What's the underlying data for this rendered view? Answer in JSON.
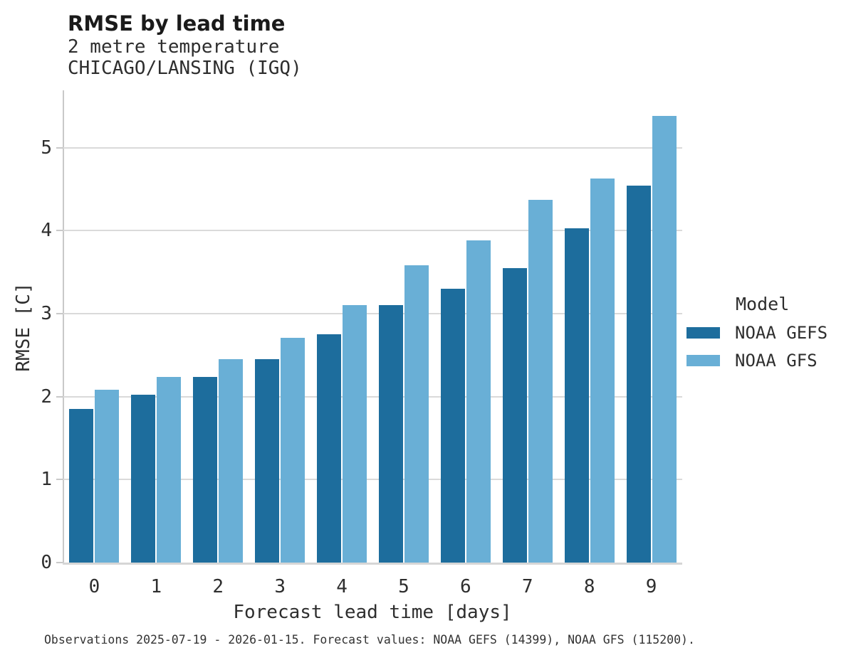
{
  "chart_data": {
    "type": "bar",
    "title": "RMSE by lead time",
    "subtitle": [
      "2 metre temperature",
      "CHICAGO/LANSING (IGQ)"
    ],
    "categories": [
      "0",
      "1",
      "2",
      "3",
      "4",
      "5",
      "6",
      "7",
      "8",
      "9"
    ],
    "series": [
      {
        "name": "NOAA GEFS",
        "color": "#1d6d9d",
        "values": [
          1.85,
          2.02,
          2.24,
          2.45,
          2.75,
          3.1,
          3.3,
          3.55,
          4.03,
          4.54
        ]
      },
      {
        "name": "NOAA GFS",
        "color": "#69afd6",
        "values": [
          2.08,
          2.24,
          2.45,
          2.71,
          3.1,
          3.58,
          3.88,
          4.37,
          4.63,
          5.38
        ]
      }
    ],
    "xlabel": "Forecast lead time [days]",
    "ylabel": "RMSE [C]",
    "ylim": [
      0,
      5.69
    ],
    "yticks": [
      0,
      1,
      2,
      3,
      4,
      5
    ],
    "grid": true,
    "legend_title": "Model",
    "legend_position": "right"
  },
  "footer": {
    "note": "Observations 2025-07-19 - 2026-01-15. Forecast values: NOAA GEFS (14399), NOAA GFS (115200)."
  }
}
